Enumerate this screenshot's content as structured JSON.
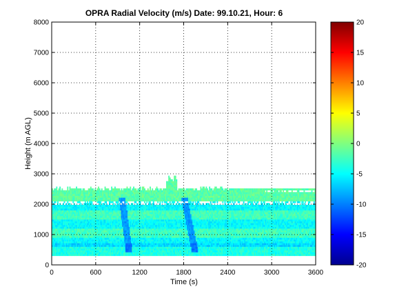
{
  "chart_data": {
    "type": "heatmap",
    "title": "OPRA Radial Velocity (m/s)  Date: 99.10.21, Hour: 6",
    "xlabel": "Time (s)",
    "ylabel": "Height (m AGL)",
    "xlim": [
      0,
      3600
    ],
    "ylim": [
      0,
      8000
    ],
    "xticks": [
      "0",
      "600",
      "1200",
      "1800",
      "2400",
      "3000",
      "3600"
    ],
    "yticks": [
      "0",
      "1000",
      "2000",
      "3000",
      "4000",
      "5000",
      "6000",
      "7000",
      "8000"
    ],
    "grid": true,
    "colorbar": {
      "range": [
        -20,
        20
      ],
      "ticks": [
        "20",
        "15",
        "10",
        "5",
        "0",
        "-5",
        "-10",
        "-15",
        "-20"
      ],
      "colormap": "jet"
    },
    "data_region": {
      "x_range_s": [
        0,
        3600
      ],
      "height_range_m": [
        300,
        3000
      ],
      "typical_velocity_ms": [
        -8,
        0
      ],
      "dominant_band_heights_m": [
        2200,
        1800,
        1400,
        1000,
        600
      ]
    },
    "features": [
      {
        "description": "diagonal descending streak of stronger negative velocity",
        "from": [
          950,
          2200
        ],
        "to": [
          1050,
          400
        ],
        "velocity_ms": -9
      },
      {
        "description": "diagonal descending streak of stronger negative velocity",
        "from": [
          1800,
          2200
        ],
        "to": [
          1950,
          400
        ],
        "velocity_ms": -9
      }
    ]
  }
}
